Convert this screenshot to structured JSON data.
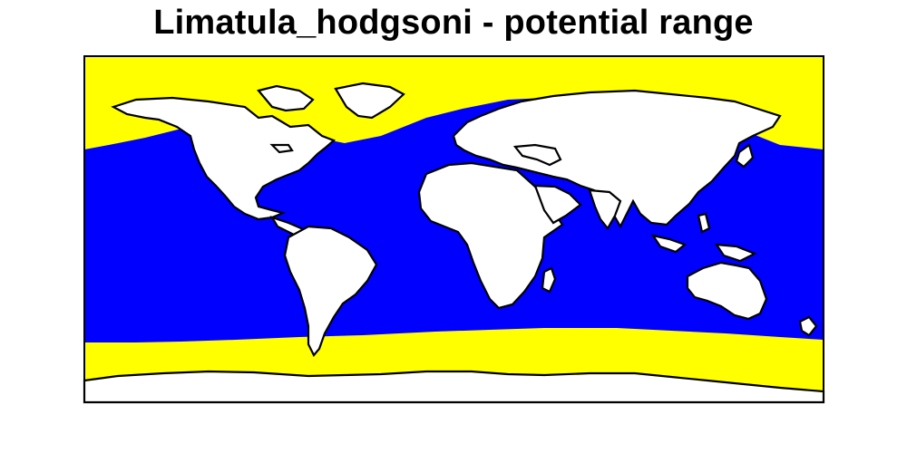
{
  "title": "Limatula_hodgsoni - potential range",
  "legend_colors": {
    "suitable": "#0000ff",
    "unsuitable_ocean": "#ffff00",
    "land": "#ffffff",
    "outline": "#000000"
  }
}
